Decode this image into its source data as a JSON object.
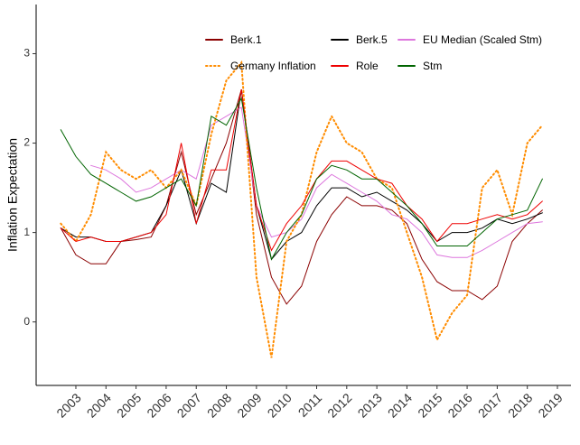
{
  "chart_data": {
    "type": "line",
    "y_label": "Inflation Expectation",
    "x": [
      2002.5,
      2003,
      2003.5,
      2004,
      2004.5,
      2005,
      2005.5,
      2006,
      2006.5,
      2007,
      2007.5,
      2008,
      2008.5,
      2009,
      2009.5,
      2010,
      2010.5,
      2011,
      2011.5,
      2012,
      2012.5,
      2013,
      2013.5,
      2014,
      2014.5,
      2015,
      2015.5,
      2016,
      2016.5,
      2017,
      2017.5,
      2018,
      2018.5
    ],
    "xlim": [
      2001.68,
      2019.45
    ],
    "xticks": [
      2003,
      2004,
      2005,
      2006,
      2007,
      2008,
      2009,
      2010,
      2011,
      2012,
      2013,
      2014,
      2015,
      2016,
      2017,
      2018,
      2019
    ],
    "ylim": [
      -0.71,
      3.55
    ],
    "yticks": [
      0,
      1,
      2,
      3
    ],
    "series": [
      {
        "name": "Berk.1",
        "color": "#8b0000",
        "linestyle": "solid",
        "values": [
          1.05,
          0.75,
          0.65,
          0.65,
          0.9,
          0.92,
          0.95,
          1.3,
          1.9,
          1.2,
          1.6,
          2.0,
          2.6,
          1.2,
          0.5,
          0.2,
          0.4,
          0.9,
          1.2,
          1.4,
          1.3,
          1.3,
          1.25,
          1.1,
          0.7,
          0.45,
          0.35,
          0.35,
          0.25,
          0.4,
          0.9,
          1.1,
          1.25
        ]
      },
      {
        "name": "Berk.5",
        "color": "#000000",
        "linestyle": "solid",
        "values": [
          1.05,
          0.95,
          0.95,
          0.9,
          0.9,
          0.95,
          1.0,
          1.3,
          1.7,
          1.1,
          1.55,
          1.45,
          2.6,
          1.3,
          0.7,
          0.9,
          1.0,
          1.3,
          1.5,
          1.5,
          1.4,
          1.45,
          1.35,
          1.25,
          1.1,
          0.9,
          1.0,
          1.0,
          1.05,
          1.15,
          1.1,
          1.15,
          1.22
        ]
      },
      {
        "name": "EU Median (Scaled Stm)",
        "color": "#dd77dd",
        "linestyle": "solid",
        "values": [
          null,
          null,
          1.75,
          1.7,
          1.6,
          1.45,
          1.5,
          1.6,
          1.7,
          1.6,
          2.2,
          2.3,
          2.4,
          1.3,
          0.95,
          1.0,
          1.15,
          1.5,
          1.65,
          1.55,
          1.45,
          1.35,
          1.2,
          1.15,
          1.0,
          0.75,
          0.72,
          0.72,
          0.8,
          0.9,
          1.0,
          1.1,
          1.12
        ]
      },
      {
        "name": "Germany Inflation",
        "color": "#ff8c00",
        "linestyle": "dotted",
        "values": [
          1.1,
          0.9,
          1.2,
          1.9,
          1.7,
          1.6,
          1.7,
          1.5,
          1.7,
          1.3,
          2.1,
          2.7,
          2.9,
          0.5,
          -0.4,
          0.9,
          1.2,
          1.9,
          2.3,
          2.0,
          1.9,
          1.6,
          1.5,
          1.0,
          0.5,
          -0.2,
          0.1,
          0.3,
          1.5,
          1.7,
          1.2,
          2.0,
          2.2
        ]
      },
      {
        "name": "Role",
        "color": "#ee0000",
        "linestyle": "solid",
        "values": [
          1.05,
          0.9,
          0.95,
          0.9,
          0.9,
          0.95,
          1.0,
          1.2,
          2.0,
          1.1,
          1.7,
          1.7,
          2.6,
          1.3,
          0.8,
          1.1,
          1.3,
          1.6,
          1.8,
          1.8,
          1.7,
          1.6,
          1.55,
          1.3,
          1.15,
          0.9,
          1.1,
          1.1,
          1.15,
          1.2,
          1.15,
          1.2,
          1.35
        ]
      },
      {
        "name": "Stm",
        "color": "#006400",
        "linestyle": "solid",
        "values": [
          2.15,
          1.85,
          1.65,
          1.55,
          1.45,
          1.35,
          1.4,
          1.5,
          1.6,
          1.3,
          2.3,
          2.2,
          2.5,
          1.5,
          0.7,
          1.0,
          1.2,
          1.6,
          1.75,
          1.7,
          1.6,
          1.6,
          1.45,
          1.3,
          1.1,
          0.85,
          0.85,
          0.85,
          1.0,
          1.15,
          1.2,
          1.25,
          1.6
        ]
      }
    ]
  }
}
